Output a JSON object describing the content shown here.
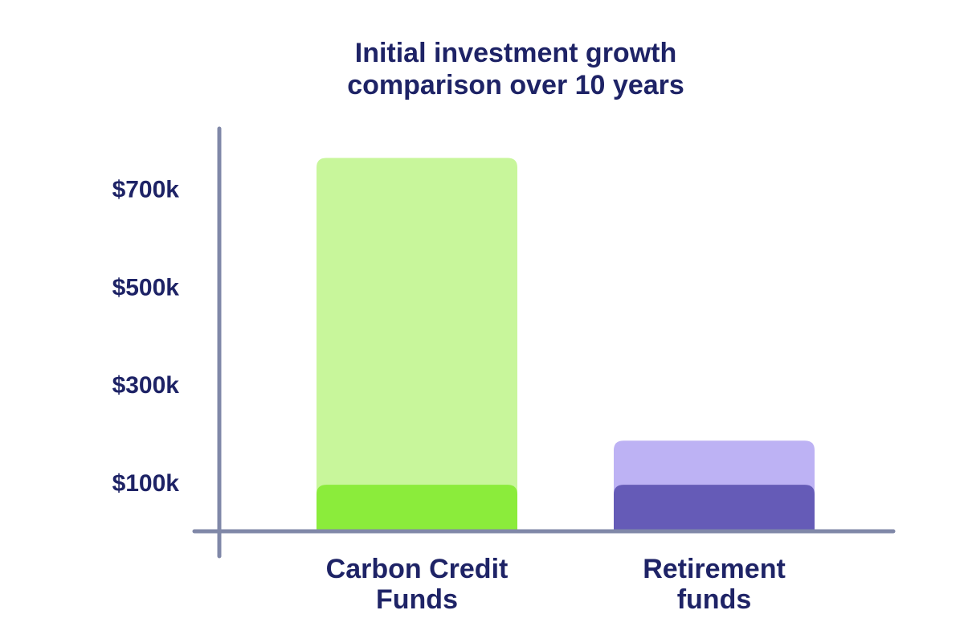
{
  "chart_data": {
    "type": "bar",
    "title": [
      "Initial investment growth",
      "comparison over 10 years"
    ],
    "xlabel": "",
    "ylabel": "",
    "ylim": [
      0,
      885
    ],
    "y_ticks": [
      {
        "value": 100,
        "label": "$100k"
      },
      {
        "value": 300,
        "label": "$300k"
      },
      {
        "value": 500,
        "label": "$500k"
      },
      {
        "value": 700,
        "label": "$700k"
      }
    ],
    "categories": [
      [
        "Carbon Credit",
        "Funds"
      ],
      [
        "Retirement",
        "funds"
      ]
    ],
    "series": [
      {
        "role": "initial",
        "values": [
          95,
          95
        ]
      },
      {
        "role": "after-10-years",
        "values": [
          762,
          185
        ]
      }
    ],
    "colors": {
      "carbon_total": "#c8f69b",
      "carbon_initial": "#8bec3b",
      "retirement_total": "#bdb2f4",
      "retirement_initial": "#655bb7",
      "axis": "#8088a8",
      "text": "#1e2366"
    },
    "grid": false,
    "legend": "none"
  }
}
